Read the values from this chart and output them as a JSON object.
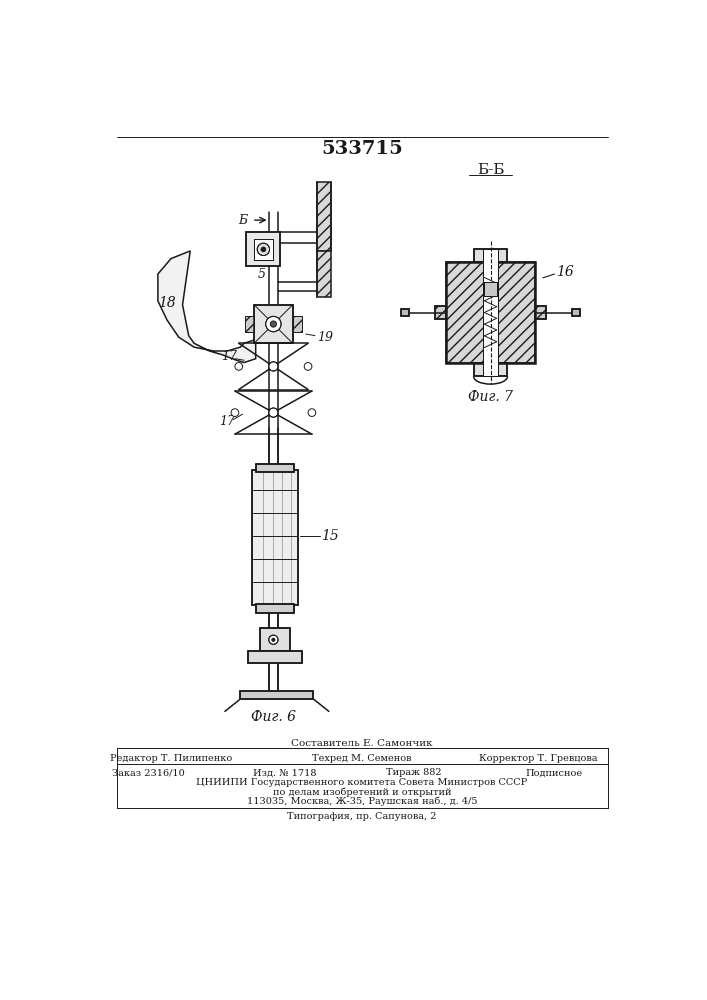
{
  "patent_number": "533715",
  "fig6_label": "Фиг. 6",
  "fig7_label": "Фиг. 7",
  "section_label": "Б-Б",
  "composer": "Составитель Е. Самончик",
  "editor": "Редактор Т. Пилипенко",
  "techred": "Техред М. Семенов",
  "corrector": "Корректор Т. Гревцова",
  "order": "Заказ 2316/10",
  "issue": "Изд. № 1718",
  "circulation": "Тираж 882",
  "signed": "Подписное",
  "org1": "ЦНИИПИ Государственного комитета Совета Министров СССР",
  "org2": "по делам изобретений и открытий",
  "address": "113035, Москва, Ж-35, Раушская наб., д. 4/5",
  "printer": "Типография, пр. Сапунова, 2",
  "bg_color": "#ffffff",
  "line_color": "#1a1a1a",
  "label_15": "15",
  "label_16": "16",
  "label_17a": "17",
  "label_17b": "17",
  "label_18": "18",
  "label_19": "19",
  "label_5": "5",
  "label_b": "Б"
}
